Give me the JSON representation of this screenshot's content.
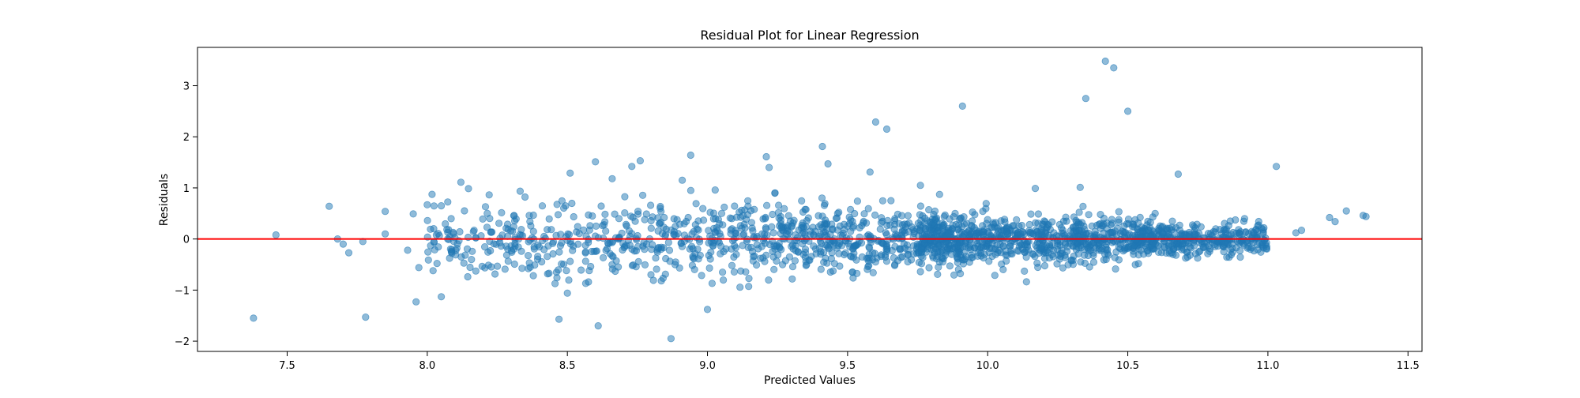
{
  "chart_data": {
    "type": "scatter",
    "title": "Residual Plot for Linear Regression",
    "xlabel": "Predicted Values",
    "ylabel": "Residuals",
    "xlim": [
      7.18,
      11.55
    ],
    "ylim": [
      -2.2,
      3.75
    ],
    "xticks": [
      7.5,
      8.0,
      8.5,
      9.0,
      9.5,
      10.0,
      10.5,
      11.0,
      11.5
    ],
    "xtick_labels": [
      "7.5",
      "8.0",
      "8.5",
      "9.0",
      "9.5",
      "10.0",
      "10.5",
      "11.0",
      "11.5"
    ],
    "yticks": [
      -2,
      -1,
      0,
      1,
      2,
      3
    ],
    "ytick_labels": [
      "−2",
      "−1",
      "0",
      "1",
      "2",
      "3"
    ],
    "grid": false,
    "legend": "none",
    "colors": {
      "points": "#1f77b4",
      "reference_line": "#ff0000"
    },
    "reference_line": {
      "y": 0
    },
    "annotated_points": [
      {
        "x": 7.38,
        "y": -1.55
      },
      {
        "x": 7.46,
        "y": 0.08
      },
      {
        "x": 7.65,
        "y": 0.64
      },
      {
        "x": 7.68,
        "y": 0.0
      },
      {
        "x": 7.7,
        "y": -0.1
      },
      {
        "x": 7.72,
        "y": -0.27
      },
      {
        "x": 7.77,
        "y": -0.05
      },
      {
        "x": 7.78,
        "y": -1.53
      },
      {
        "x": 7.85,
        "y": 0.54
      },
      {
        "x": 7.85,
        "y": 0.1
      },
      {
        "x": 7.93,
        "y": -0.22
      },
      {
        "x": 7.95,
        "y": 0.49
      },
      {
        "x": 7.96,
        "y": -1.23
      },
      {
        "x": 7.97,
        "y": -0.56
      },
      {
        "x": 8.0,
        "y": 0.67
      },
      {
        "x": 8.05,
        "y": 0.65
      },
      {
        "x": 8.05,
        "y": -1.13
      },
      {
        "x": 8.12,
        "y": 1.11
      },
      {
        "x": 8.47,
        "y": -1.57
      },
      {
        "x": 8.5,
        "y": -1.06
      },
      {
        "x": 8.51,
        "y": 1.29
      },
      {
        "x": 8.6,
        "y": 1.51
      },
      {
        "x": 8.61,
        "y": -1.7
      },
      {
        "x": 8.66,
        "y": 1.18
      },
      {
        "x": 8.73,
        "y": 1.42
      },
      {
        "x": 8.76,
        "y": 1.53
      },
      {
        "x": 8.87,
        "y": -1.95
      },
      {
        "x": 8.91,
        "y": 1.15
      },
      {
        "x": 8.94,
        "y": 1.64
      },
      {
        "x": 9.0,
        "y": -1.38
      },
      {
        "x": 9.21,
        "y": 1.61
      },
      {
        "x": 9.22,
        "y": 1.4
      },
      {
        "x": 9.41,
        "y": 1.81
      },
      {
        "x": 9.43,
        "y": 1.47
      },
      {
        "x": 9.58,
        "y": 1.31
      },
      {
        "x": 9.6,
        "y": 2.29
      },
      {
        "x": 9.64,
        "y": 2.15
      },
      {
        "x": 9.76,
        "y": 1.05
      },
      {
        "x": 9.91,
        "y": 2.6
      },
      {
        "x": 10.17,
        "y": 0.99
      },
      {
        "x": 10.33,
        "y": 1.01
      },
      {
        "x": 10.35,
        "y": 2.75
      },
      {
        "x": 10.42,
        "y": 3.48
      },
      {
        "x": 10.45,
        "y": 3.35
      },
      {
        "x": 10.5,
        "y": 2.5
      },
      {
        "x": 10.68,
        "y": 1.27
      },
      {
        "x": 11.03,
        "y": 1.42
      },
      {
        "x": 11.1,
        "y": 0.12
      },
      {
        "x": 11.12,
        "y": 0.17
      },
      {
        "x": 11.22,
        "y": 0.42
      },
      {
        "x": 11.24,
        "y": 0.34
      },
      {
        "x": 11.28,
        "y": 0.55
      },
      {
        "x": 11.34,
        "y": 0.46
      },
      {
        "x": 11.35,
        "y": 0.44
      }
    ],
    "bulk_points_model": {
      "count": 2000,
      "x_range": [
        8.0,
        11.0
      ],
      "y_center": 0,
      "y_spread_by_x": [
        {
          "x": 8.0,
          "sd": 0.45
        },
        {
          "x": 9.0,
          "sd": 0.45
        },
        {
          "x": 10.0,
          "sd": 0.28
        },
        {
          "x": 11.0,
          "sd": 0.16
        }
      ]
    }
  }
}
